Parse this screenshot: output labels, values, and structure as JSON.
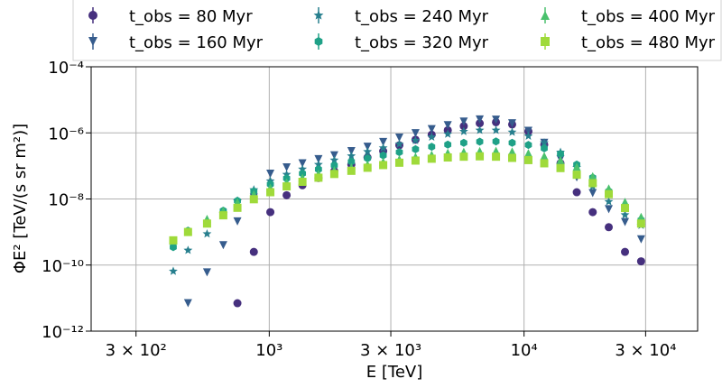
{
  "chart_data": {
    "type": "scatter",
    "xlabel": "E [TeV]",
    "ylabel": "ΦE² [TeV/(s sr m²)]",
    "xscale": "log",
    "yscale": "log",
    "xlim": [
      200,
      48000
    ],
    "ylim": [
      1e-12,
      0.0001
    ],
    "grid": true,
    "legend_position": "top",
    "x_ticks": [
      {
        "value": 300,
        "label": "3 × 10²"
      },
      {
        "value": 1000,
        "label": "10³"
      },
      {
        "value": 3000,
        "label": "3 × 10³"
      },
      {
        "value": 10000,
        "label": "10⁴"
      },
      {
        "value": 30000,
        "label": "3 × 10⁴"
      }
    ],
    "y_ticks": [
      {
        "value": 1e-12,
        "label": "10⁻¹²"
      },
      {
        "value": 1e-10,
        "label": "10⁻¹⁰"
      },
      {
        "value": 1e-08,
        "label": "10⁻⁸"
      },
      {
        "value": 1e-06,
        "label": "10⁻⁶"
      },
      {
        "value": 0.0001,
        "label": "10⁻⁴"
      }
    ],
    "series": [
      {
        "name": "t_obs = 80 Myr",
        "marker": "circle",
        "color": "#46307e",
        "x": [
          750,
          870,
          1010,
          1170,
          1350,
          1560,
          1800,
          2100,
          2430,
          2800,
          3240,
          3750,
          4340,
          5020,
          5800,
          6700,
          7760,
          8980,
          10400,
          12000,
          13900,
          16100,
          18600,
          21500,
          24900,
          28800
        ],
        "y": [
          7e-12,
          2.5e-10,
          4e-09,
          1.3e-08,
          2.6e-08,
          4.3e-08,
          7e-08,
          1.1e-07,
          1.8e-07,
          2.8e-07,
          4.2e-07,
          6.2e-07,
          8.8e-07,
          1.2e-06,
          1.6e-06,
          1.95e-06,
          2.1e-06,
          1.8e-06,
          1.1e-06,
          4.4e-07,
          1.2e-07,
          1.6e-08,
          4e-09,
          1.4e-09,
          2.5e-10,
          1.3e-10
        ]
      },
      {
        "name": "t_obs = 160 Myr",
        "marker": "triangle-down",
        "color": "#365c8d",
        "x": [
          480,
          570,
          660,
          750,
          870,
          1010,
          1170,
          1350,
          1560,
          1800,
          2100,
          2430,
          2800,
          3240,
          3750,
          4340,
          5020,
          5800,
          6700,
          7760,
          8980,
          10400,
          12000,
          13900,
          16100,
          18600,
          21500,
          24900,
          28800
        ],
        "y": [
          7e-12,
          6e-11,
          4e-10,
          2.1e-09,
          1.1e-08,
          5.8e-08,
          9e-08,
          1.2e-07,
          1.6e-07,
          2.1e-07,
          2.8e-07,
          3.8e-07,
          5.3e-07,
          7.2e-07,
          9.8e-07,
          1.3e-06,
          1.7e-06,
          2.2e-06,
          2.55e-06,
          2.5e-06,
          1.95e-06,
          1.15e-06,
          5e-07,
          1.6e-07,
          4.5e-08,
          1.5e-08,
          4.9e-09,
          2e-09,
          6e-10
        ]
      },
      {
        "name": "t_obs = 240 Myr",
        "marker": "star",
        "color": "#277f8e",
        "x": [
          420,
          480,
          570,
          660,
          750,
          870,
          1010,
          1170,
          1350,
          1560,
          1800,
          2100,
          2430,
          2800,
          3240,
          3750,
          4340,
          5020,
          5800,
          6700,
          7760,
          8980,
          10400,
          12000,
          13900,
          16100,
          18600,
          21500,
          24900,
          28800
        ],
        "y": [
          6.5e-11,
          2.8e-10,
          8.8e-10,
          3.5e-09,
          8.7e-09,
          1.9e-08,
          3.5e-08,
          5.5e-08,
          8e-08,
          1.1e-07,
          1.5e-07,
          2e-07,
          2.7e-07,
          3.5e-07,
          4.6e-07,
          5.9e-07,
          7.5e-07,
          9.2e-07,
          1.1e-06,
          1.2e-06,
          1.2e-06,
          1.05e-06,
          8e-07,
          5e-07,
          2.6e-07,
          9e-08,
          2.4e-08,
          8.3e-09,
          3.3e-09,
          1.6e-09
        ]
      },
      {
        "name": "t_obs = 320 Myr",
        "marker": "hexagon",
        "color": "#1fa187",
        "x": [
          420,
          480,
          570,
          660,
          750,
          870,
          1010,
          1170,
          1350,
          1560,
          1800,
          2100,
          2430,
          2800,
          3240,
          3750,
          4340,
          5020,
          5800,
          6700,
          7760,
          8980,
          10400,
          12000,
          13900,
          16100,
          18600,
          21500,
          24900,
          28800
        ],
        "y": [
          3.5e-10,
          1.1e-09,
          1.9e-09,
          4.4e-09,
          8.8e-09,
          1.7e-08,
          2.8e-08,
          4.2e-08,
          5.9e-08,
          7.9e-08,
          1.04e-07,
          1.35e-07,
          1.7e-07,
          2.1e-07,
          2.6e-07,
          3.2e-07,
          3.8e-07,
          4.4e-07,
          5e-07,
          5.4e-07,
          5.5e-07,
          5e-07,
          4.3e-07,
          3.4e-07,
          2.3e-07,
          1.1e-07,
          4.4e-08,
          1.7e-08,
          6e-09,
          2.3e-09
        ]
      },
      {
        "name": "t_obs = 400 Myr",
        "marker": "triangle-up",
        "color": "#4ac16d",
        "x": [
          420,
          480,
          570,
          660,
          750,
          870,
          1010,
          1170,
          1350,
          1560,
          1800,
          2100,
          2430,
          2800,
          3240,
          3750,
          4340,
          5020,
          5800,
          6700,
          7760,
          8980,
          10400,
          12000,
          13900,
          16100,
          18600,
          21500,
          24900,
          28800
        ],
        "y": [
          5.5e-10,
          1.1e-09,
          2.5e-09,
          4.4e-09,
          8.1e-09,
          1.4e-08,
          2.2e-08,
          3.2e-08,
          4.4e-08,
          5.8e-08,
          7.4e-08,
          9.2e-08,
          1.12e-07,
          1.35e-07,
          1.6e-07,
          1.9e-07,
          2.2e-07,
          2.5e-07,
          2.7e-07,
          2.85e-07,
          2.9e-07,
          2.75e-07,
          2.45e-07,
          2e-07,
          1.5e-07,
          9.5e-08,
          4.9e-08,
          2.1e-08,
          8.2e-09,
          2.9e-09
        ]
      },
      {
        "name": "t_obs = 480 Myr",
        "marker": "square",
        "color": "#9fda3a",
        "x": [
          420,
          480,
          570,
          660,
          750,
          870,
          1010,
          1170,
          1350,
          1560,
          1800,
          2100,
          2430,
          2800,
          3240,
          3750,
          4340,
          5020,
          5800,
          6700,
          7760,
          8980,
          10400,
          12000,
          13900,
          16100,
          18600,
          21500,
          24900,
          28800
        ],
        "y": [
          5.6e-10,
          1e-09,
          1.8e-09,
          3.2e-09,
          5.4e-09,
          9.8e-09,
          1.6e-08,
          2.4e-08,
          3.3e-08,
          4.4e-08,
          5.7e-08,
          7.1e-08,
          8.8e-08,
          1.06e-07,
          1.25e-07,
          1.45e-07,
          1.65e-07,
          1.8e-07,
          1.9e-07,
          1.95e-07,
          1.9e-07,
          1.75e-07,
          1.5e-07,
          1.2e-07,
          8.6e-08,
          5.4e-08,
          3e-08,
          1.4e-08,
          5.3e-09,
          1.8e-09
        ]
      }
    ]
  }
}
